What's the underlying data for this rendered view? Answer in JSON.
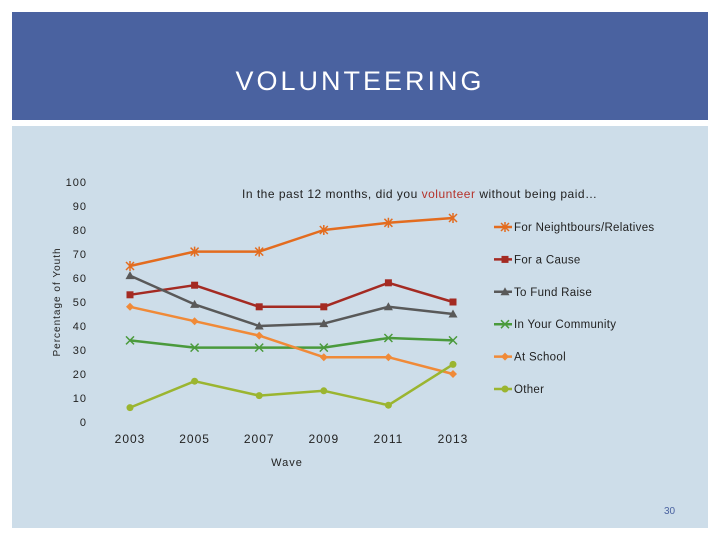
{
  "slide": {
    "title": "VOLUNTEERING",
    "page_number": "30"
  },
  "colors": {
    "header": "#4a62a0",
    "panel": "#cddde9"
  },
  "chart_data": {
    "type": "line",
    "title": "In the past 12 months, did you volunteer without being paid…",
    "title_parts": [
      "In the past 12 months, did you ",
      "volunteer",
      " without being paid…"
    ],
    "xlabel": "Wave",
    "ylabel": "Percentage of Youth",
    "x": [
      "2003",
      "2005",
      "2007",
      "2009",
      "2011",
      "2013"
    ],
    "y_ticks": [
      "0",
      "10",
      "20",
      "30",
      "40",
      "50",
      "60",
      "70",
      "80",
      "90",
      "100"
    ],
    "ylim": [
      0,
      100
    ],
    "grid": false,
    "legend_position": "right",
    "series": [
      {
        "name": "For Neightbours/Relatives",
        "color": "#e36c1f",
        "marker": "star",
        "values": [
          65,
          71,
          71,
          80,
          83,
          85
        ]
      },
      {
        "name": "For a Cause",
        "color": "#a42a22",
        "marker": "square",
        "values": [
          53,
          57,
          48,
          48,
          58,
          50
        ]
      },
      {
        "name": "To Fund Raise",
        "color": "#595959",
        "marker": "triangle",
        "values": [
          61,
          49,
          40,
          41,
          48,
          45
        ]
      },
      {
        "name": "In Your Community",
        "color": "#4a9a3c",
        "marker": "x",
        "values": [
          34,
          31,
          31,
          31,
          35,
          34
        ]
      },
      {
        "name": "At School",
        "color": "#f08a38",
        "marker": "diamond",
        "values": [
          48,
          42,
          36,
          27,
          27,
          20
        ]
      },
      {
        "name": "Other",
        "color": "#9bb530",
        "marker": "circle",
        "values": [
          6,
          17,
          11,
          13,
          7,
          24
        ]
      }
    ]
  }
}
